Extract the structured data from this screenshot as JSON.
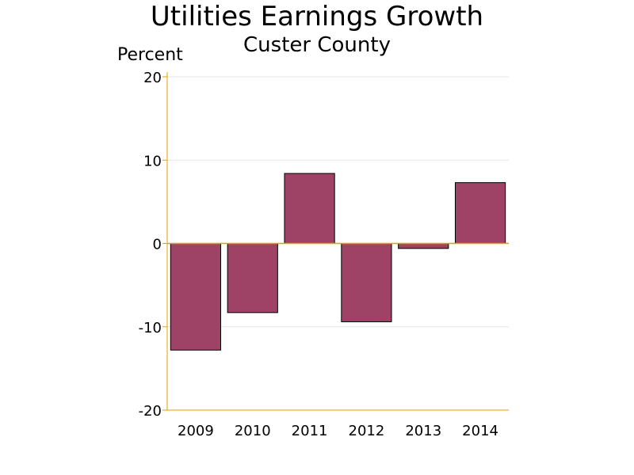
{
  "chart_data": {
    "type": "bar",
    "title": "Utilities Earnings Growth",
    "subtitle": "Custer County",
    "ylabel": "Percent",
    "xlabel": "",
    "categories": [
      "2009",
      "2010",
      "2011",
      "2012",
      "2013",
      "2014"
    ],
    "values": [
      -12.8,
      -8.3,
      8.4,
      -9.4,
      -0.6,
      7.3
    ],
    "ylim": [
      -20,
      20
    ],
    "yticks": [
      20,
      10,
      0,
      -10,
      -20
    ],
    "ytick_labels": [
      "20",
      "10",
      "0",
      "-10",
      "-20"
    ],
    "grid": true,
    "colors": {
      "bar_fill": "#9e4266",
      "bar_stroke": "#000000",
      "axis": "#e0a000",
      "grid": "#e6e6e6"
    }
  }
}
